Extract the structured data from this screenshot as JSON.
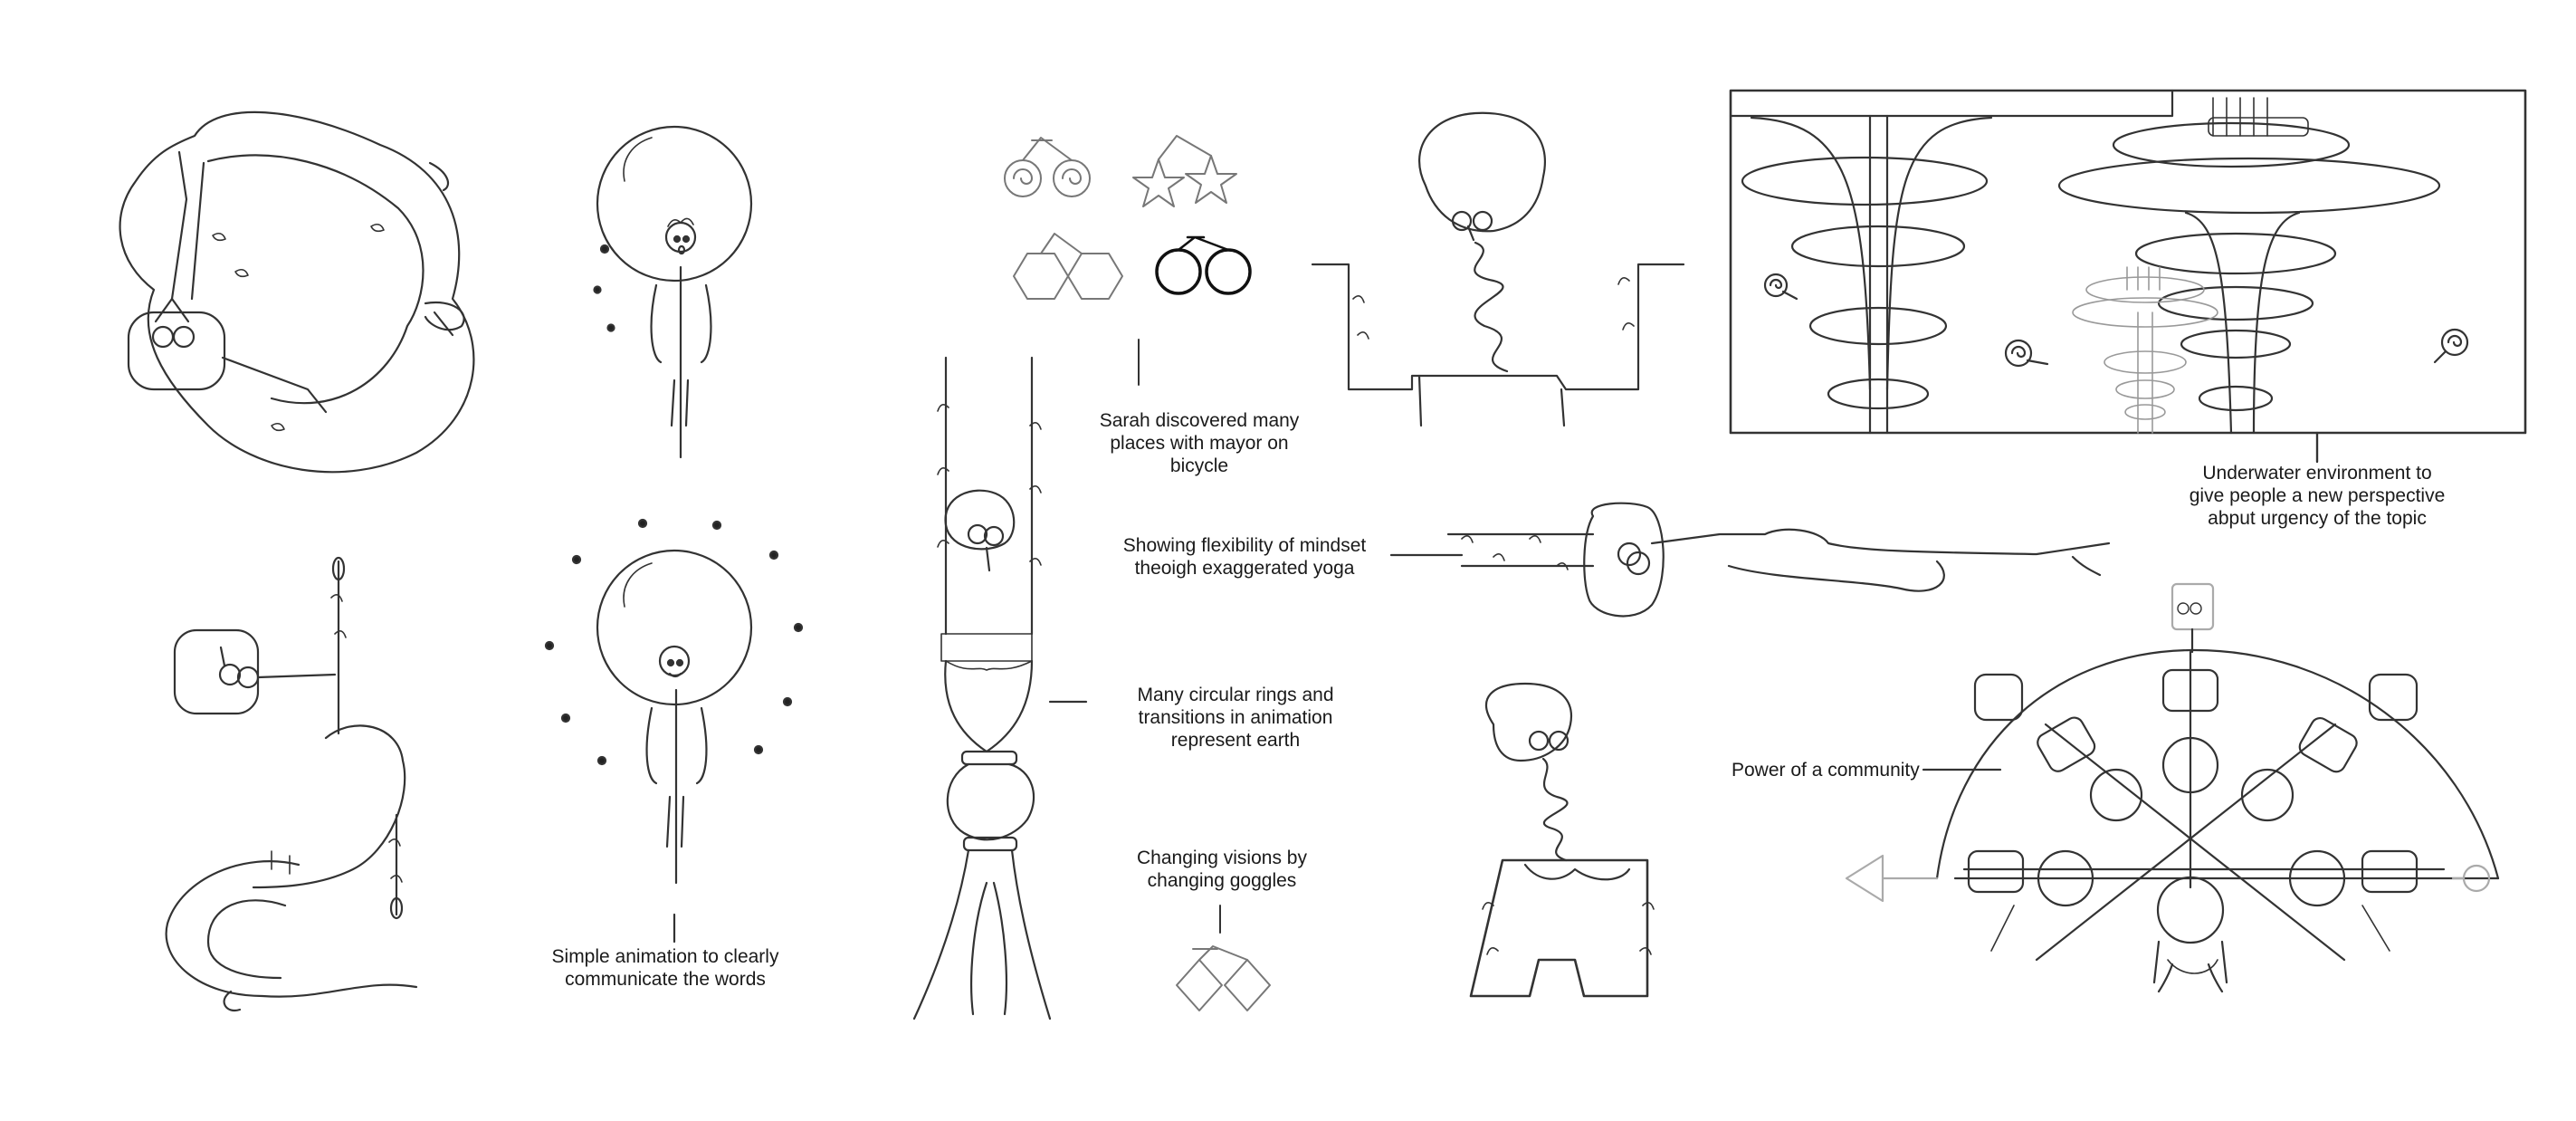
{
  "annotations": {
    "mayor_bicycle": [
      "Sarah discovered many",
      "places with mayor on",
      "bicycle"
    ],
    "underwater": [
      "Underwater environment to",
      "give people a new perspective",
      "abput urgency of the topic"
    ],
    "yoga": [
      "Showing flexibility of mindset",
      "theoigh exaggerated yoga"
    ],
    "rings": [
      "Many circular rings and",
      "transitions in animation",
      "represent earth"
    ],
    "community": [
      "Power of a community"
    ],
    "goggles": [
      "Changing visions by",
      "changing goggles"
    ],
    "simple_animation": [
      "Simple animation to clearly",
      "communicate the words"
    ]
  },
  "colors": {
    "ink": "#2b2b2b",
    "light_ink": "#8a8a8a",
    "text": "#1a1a1a",
    "paper": "#ffffff"
  }
}
